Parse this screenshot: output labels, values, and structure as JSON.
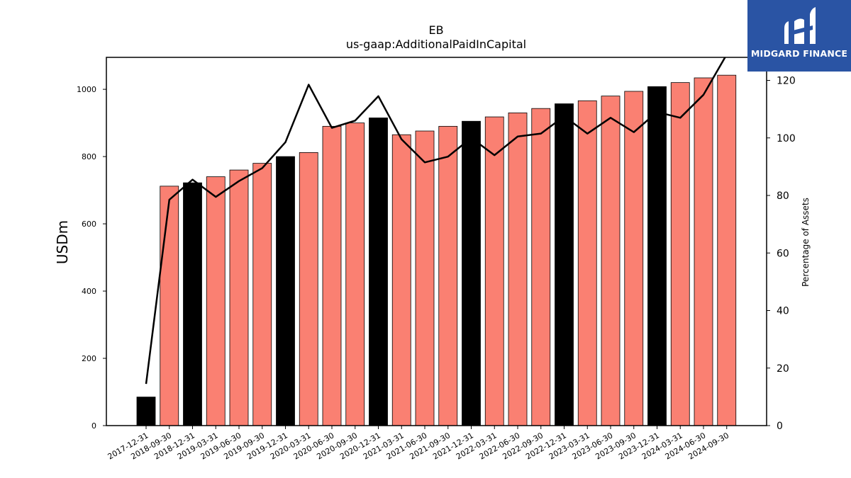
{
  "chart_data": {
    "type": "bar",
    "title": "EB",
    "subtitle": "us-gaap:AdditionalPaidInCapital",
    "ylabel": "USDm",
    "y2label": "Percentage of Assets",
    "ylim": [
      0,
      1095
    ],
    "y2lim": [
      0,
      128
    ],
    "yticks": [
      0,
      200,
      400,
      600,
      800,
      1000
    ],
    "y2ticks": [
      0,
      20,
      40,
      60,
      80,
      100,
      120
    ],
    "categories": [
      "2017-12-31",
      "2018-09-30",
      "2018-12-31",
      "2019-03-31",
      "2019-06-30",
      "2019-09-30",
      "2019-12-31",
      "2020-03-31",
      "2020-06-30",
      "2020-09-30",
      "2020-12-31",
      "2021-03-31",
      "2021-06-30",
      "2021-09-30",
      "2021-12-31",
      "2022-03-31",
      "2022-06-30",
      "2022-09-30",
      "2022-12-31",
      "2023-03-31",
      "2023-06-30",
      "2023-09-30",
      "2023-12-31",
      "2024-03-31",
      "2024-06-30",
      "2024-09-30"
    ],
    "series": [
      {
        "type": "bar",
        "values": [
          85,
          712,
          722,
          740,
          760,
          780,
          800,
          812,
          890,
          900,
          915,
          865,
          876,
          890,
          905,
          918,
          930,
          943,
          957,
          966,
          980,
          994,
          1008,
          1020,
          1034,
          1042
        ],
        "colors": [
          "#000000",
          "#fa8072",
          "#000000",
          "#fa8072",
          "#fa8072",
          "#fa8072",
          "#000000",
          "#fa8072",
          "#fa8072",
          "#fa8072",
          "#000000",
          "#fa8072",
          "#fa8072",
          "#fa8072",
          "#000000",
          "#fa8072",
          "#fa8072",
          "#fa8072",
          "#000000",
          "#fa8072",
          "#fa8072",
          "#fa8072",
          "#000000",
          "#fa8072",
          "#fa8072",
          "#fa8072"
        ]
      },
      {
        "type": "line",
        "axis": "secondary",
        "color": "#000000",
        "values": [
          14.5,
          78.5,
          85.5,
          79.5,
          85,
          89.5,
          98.5,
          118.5,
          103.5,
          106,
          114.5,
          99.5,
          91.5,
          93.5,
          100,
          94,
          100.5,
          101.5,
          107.5,
          101.5,
          107,
          102,
          109,
          107,
          115,
          129
        ]
      }
    ],
    "grid": false,
    "legend": "none"
  },
  "logo": {
    "text": "MIDGARD FINANCE"
  }
}
